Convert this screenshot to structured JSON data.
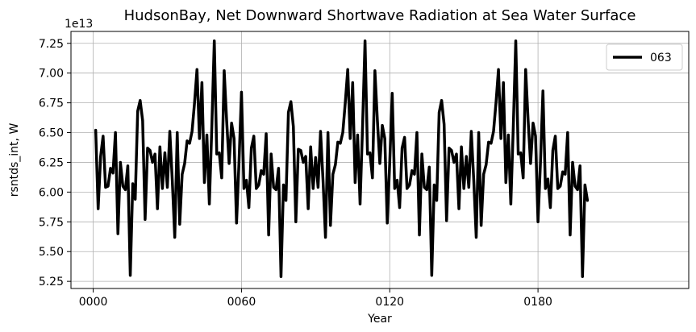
{
  "chart_data": {
    "type": "line",
    "title": "HudsonBay, Net Downward Shortwave Radiation at Sea Water Surface",
    "xlabel": "Year",
    "ylabel": "rsntds_int, W",
    "offset_label": "1e13",
    "y_scale_factor": 10000000000000.0,
    "xlim": [
      -9,
      241
    ],
    "ylim": [
      5.19,
      7.35
    ],
    "x_ticks": [
      0,
      60,
      120,
      180
    ],
    "x_tick_labels": [
      "0000",
      "0060",
      "0120",
      "0180"
    ],
    "y_ticks": [
      5.25,
      5.5,
      5.75,
      6.0,
      6.25,
      6.5,
      6.75,
      7.0,
      7.25
    ],
    "y_tick_labels": [
      "5.25",
      "5.50",
      "5.75",
      "6.00",
      "6.25",
      "6.50",
      "6.75",
      "7.00",
      "7.25"
    ],
    "grid": true,
    "legend_position": "top-right",
    "series": [
      {
        "name": "063",
        "color": "#000000",
        "x_start": 1,
        "x_step": 1,
        "values": [
          6.52,
          5.86,
          6.3,
          6.47,
          6.04,
          6.05,
          6.2,
          6.16,
          6.5,
          5.65,
          6.25,
          6.05,
          6.02,
          6.22,
          5.3,
          6.07,
          5.94,
          6.68,
          6.77,
          6.6,
          5.77,
          6.37,
          6.35,
          6.25,
          6.32,
          5.86,
          6.38,
          6.03,
          6.33,
          6.04,
          6.51,
          6.1,
          5.62,
          6.5,
          5.73,
          6.15,
          6.24,
          6.43,
          6.41,
          6.51,
          6.75,
          7.03,
          6.45,
          6.92,
          6.08,
          6.48,
          5.9,
          6.55,
          7.27,
          6.32,
          6.33,
          6.12,
          7.02,
          6.6,
          6.24,
          6.58,
          6.45,
          5.74,
          6.25,
          6.84,
          6.03,
          6.1,
          5.87,
          6.37,
          6.47,
          6.03,
          6.06,
          6.18,
          6.15,
          6.49,
          5.64,
          6.32,
          6.04,
          6.02,
          6.2,
          5.29,
          6.06,
          5.93,
          6.67,
          6.76,
          6.55,
          5.75,
          6.36,
          6.35,
          6.25,
          6.3,
          5.86,
          6.38,
          6.03,
          6.29,
          6.04,
          6.51,
          6.1,
          5.62,
          6.5,
          5.72,
          6.15,
          6.23,
          6.42,
          6.41,
          6.5,
          6.75,
          7.03,
          6.45,
          6.92,
          6.08,
          6.48,
          5.9,
          6.55,
          7.27,
          6.32,
          6.33,
          6.12,
          7.02,
          6.6,
          6.24,
          6.56,
          6.45,
          5.74,
          6.25,
          6.83,
          6.03,
          6.1,
          5.87,
          6.37,
          6.46,
          6.03,
          6.06,
          6.18,
          6.15,
          6.5,
          5.64,
          6.32,
          6.04,
          6.02,
          6.21,
          5.3,
          6.06,
          5.93,
          6.67,
          6.77,
          6.57,
          5.76,
          6.37,
          6.35,
          6.25,
          6.32,
          5.86,
          6.38,
          6.03,
          6.3,
          6.04,
          6.51,
          6.1,
          5.62,
          6.5,
          5.72,
          6.15,
          6.23,
          6.42,
          6.41,
          6.51,
          6.75,
          7.03,
          6.45,
          6.92,
          6.08,
          6.48,
          5.9,
          6.55,
          7.27,
          6.32,
          6.33,
          6.12,
          7.03,
          6.6,
          6.24,
          6.58,
          6.47,
          5.75,
          6.25,
          6.85,
          6.03,
          6.11,
          5.87,
          6.35,
          6.47,
          6.03,
          6.05,
          6.17,
          6.15,
          6.5,
          5.64,
          6.25,
          6.05,
          6.02,
          6.22,
          5.29,
          6.06,
          5.93
        ]
      }
    ]
  }
}
